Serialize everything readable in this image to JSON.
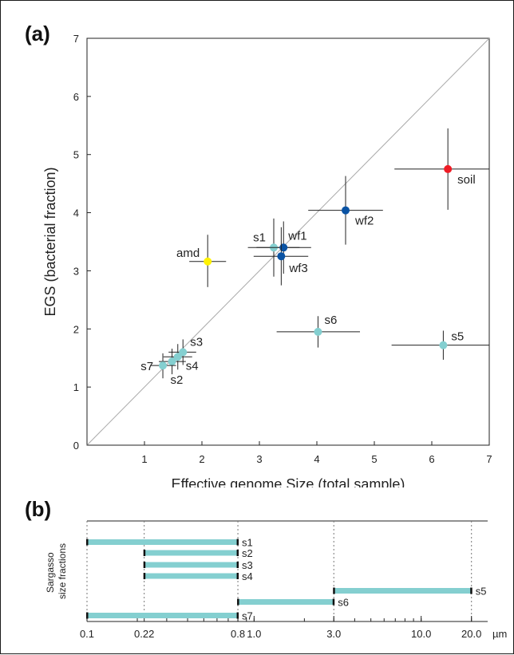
{
  "chart_data": [
    {
      "type": "scatter",
      "panel_label": "(a)",
      "xlabel": "Effective genome Size (total sample)",
      "ylabel": "EGS (bacterial fraction)",
      "xlim": [
        0,
        7
      ],
      "ylim": [
        0,
        7
      ],
      "xticks": [
        1,
        2,
        3,
        4,
        5,
        6,
        7
      ],
      "yticks": [
        0,
        1,
        2,
        3,
        4,
        5,
        6,
        7
      ],
      "diagonal": true,
      "points": [
        {
          "label": "soil",
          "x": 6.28,
          "y": 4.75,
          "xerr": [
            5.35,
            7.0
          ],
          "yerr": [
            4.05,
            5.45
          ],
          "color": "#ee1c25"
        },
        {
          "label": "wf2",
          "x": 4.5,
          "y": 4.04,
          "xerr": [
            3.85,
            5.15
          ],
          "yerr": [
            3.45,
            4.63
          ],
          "color": "#0a53a4"
        },
        {
          "label": "s1",
          "x": 3.25,
          "y": 3.4,
          "xerr": [
            2.8,
            3.7
          ],
          "yerr": [
            2.9,
            3.9
          ],
          "color": "#84cfd0"
        },
        {
          "label": "wf1",
          "x": 3.42,
          "y": 3.4,
          "xerr": [
            2.95,
            3.9
          ],
          "yerr": [
            2.95,
            3.85
          ],
          "color": "#0a53a4"
        },
        {
          "label": "wf3",
          "x": 3.38,
          "y": 3.25,
          "xerr": [
            2.9,
            3.85
          ],
          "yerr": [
            2.75,
            3.75
          ],
          "color": "#0a53a4"
        },
        {
          "label": "amd",
          "x": 2.1,
          "y": 3.16,
          "xerr": [
            1.78,
            2.42
          ],
          "yerr": [
            2.72,
            3.62
          ],
          "color": "#fff200"
        },
        {
          "label": "s6",
          "x": 4.02,
          "y": 1.95,
          "xerr": [
            3.3,
            4.75
          ],
          "yerr": [
            1.68,
            2.22
          ],
          "color": "#84cfd0"
        },
        {
          "label": "s5",
          "x": 6.2,
          "y": 1.72,
          "xerr": [
            5.3,
            7.0
          ],
          "yerr": [
            1.47,
            1.97
          ],
          "color": "#84cfd0"
        },
        {
          "label": "s3",
          "x": 1.67,
          "y": 1.6,
          "xerr": [
            1.42,
            1.9
          ],
          "yerr": [
            1.38,
            1.82
          ],
          "color": "#84cfd0"
        },
        {
          "label": "s4",
          "x": 1.58,
          "y": 1.52,
          "xerr": [
            1.33,
            1.83
          ],
          "yerr": [
            1.3,
            1.74
          ],
          "color": "#84cfd0"
        },
        {
          "label": "s2",
          "x": 1.48,
          "y": 1.44,
          "xerr": [
            1.25,
            1.72
          ],
          "yerr": [
            1.22,
            1.66
          ],
          "color": "#84cfd0"
        },
        {
          "label": "s7",
          "x": 1.32,
          "y": 1.37,
          "xerr": [
            1.1,
            1.55
          ],
          "yerr": [
            1.15,
            1.58
          ],
          "color": "#84cfd0"
        }
      ]
    },
    {
      "type": "range",
      "panel_label": "(b)",
      "ylabel": "Sargasso\nsize fractions",
      "xscale": "log",
      "xlim": [
        0.1,
        25
      ],
      "xticks": [
        {
          "value": 0.1,
          "label": "0.1"
        },
        {
          "value": 0.22,
          "label": "0.22"
        },
        {
          "value": 0.8,
          "label": "0.8"
        },
        {
          "value": 1.0,
          "label": "1.0"
        },
        {
          "value": 3.0,
          "label": "3.0"
        },
        {
          "value": 10.0,
          "label": "10.0"
        },
        {
          "value": 20.0,
          "label": "20.0"
        }
      ],
      "unit": "µm",
      "gridlines": [
        0.1,
        0.22,
        0.8,
        3.0,
        20.0
      ],
      "bar_color": "#84cfd0",
      "bars": [
        {
          "label": "s1",
          "from": 0.1,
          "to": 0.8
        },
        {
          "label": "s2",
          "from": 0.22,
          "to": 0.8
        },
        {
          "label": "s3",
          "from": 0.22,
          "to": 0.8
        },
        {
          "label": "s4",
          "from": 0.22,
          "to": 0.8
        },
        {
          "label": "s5",
          "from": 3.0,
          "to": 20.0
        },
        {
          "label": "s6",
          "from": 0.8,
          "to": 3.0
        },
        {
          "label": "s7",
          "from": 0.1,
          "to": 0.8
        }
      ]
    }
  ]
}
